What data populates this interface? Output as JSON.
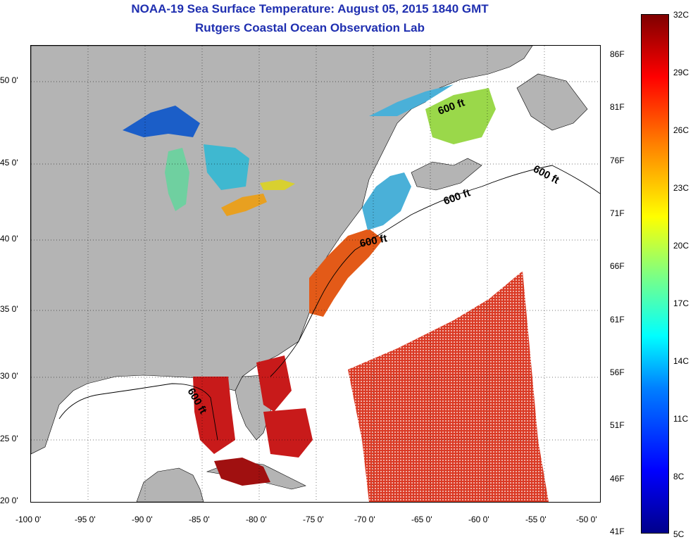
{
  "header": {
    "title": "NOAA-19 Sea Surface Temperature:  August 05, 2015 1840 GMT",
    "subtitle": "Rutgers Coastal Ocean Observation Lab"
  },
  "map": {
    "lat_labels": [
      "50 0'",
      "45 0'",
      "40 0'",
      "35 0'",
      "30 0'",
      "25 0'",
      "20 0'"
    ],
    "lon_labels": [
      "-100 0'",
      "-95 0'",
      "-90 0'",
      "-85 0'",
      "-80 0'",
      "-75 0'",
      "-70 0'",
      "-65 0'",
      "-60 0'",
      "-55 0'",
      "-50 0'"
    ],
    "contour_labels": [
      "600 ft",
      "600 ft",
      "600 ft",
      "600 ft",
      "600 ft"
    ],
    "colors": {
      "land": "#b4b4b4",
      "no_data": "#ffffff",
      "title": "#1f2fb0"
    }
  },
  "colorbar": {
    "fahrenheit": [
      "86F",
      "81F",
      "76F",
      "71F",
      "66F",
      "61F",
      "56F",
      "51F",
      "46F",
      "41F"
    ],
    "celsius": [
      "32C",
      "29C",
      "26C",
      "23C",
      "20C",
      "17C",
      "14C",
      "11C",
      "8C",
      "5C"
    ]
  }
}
